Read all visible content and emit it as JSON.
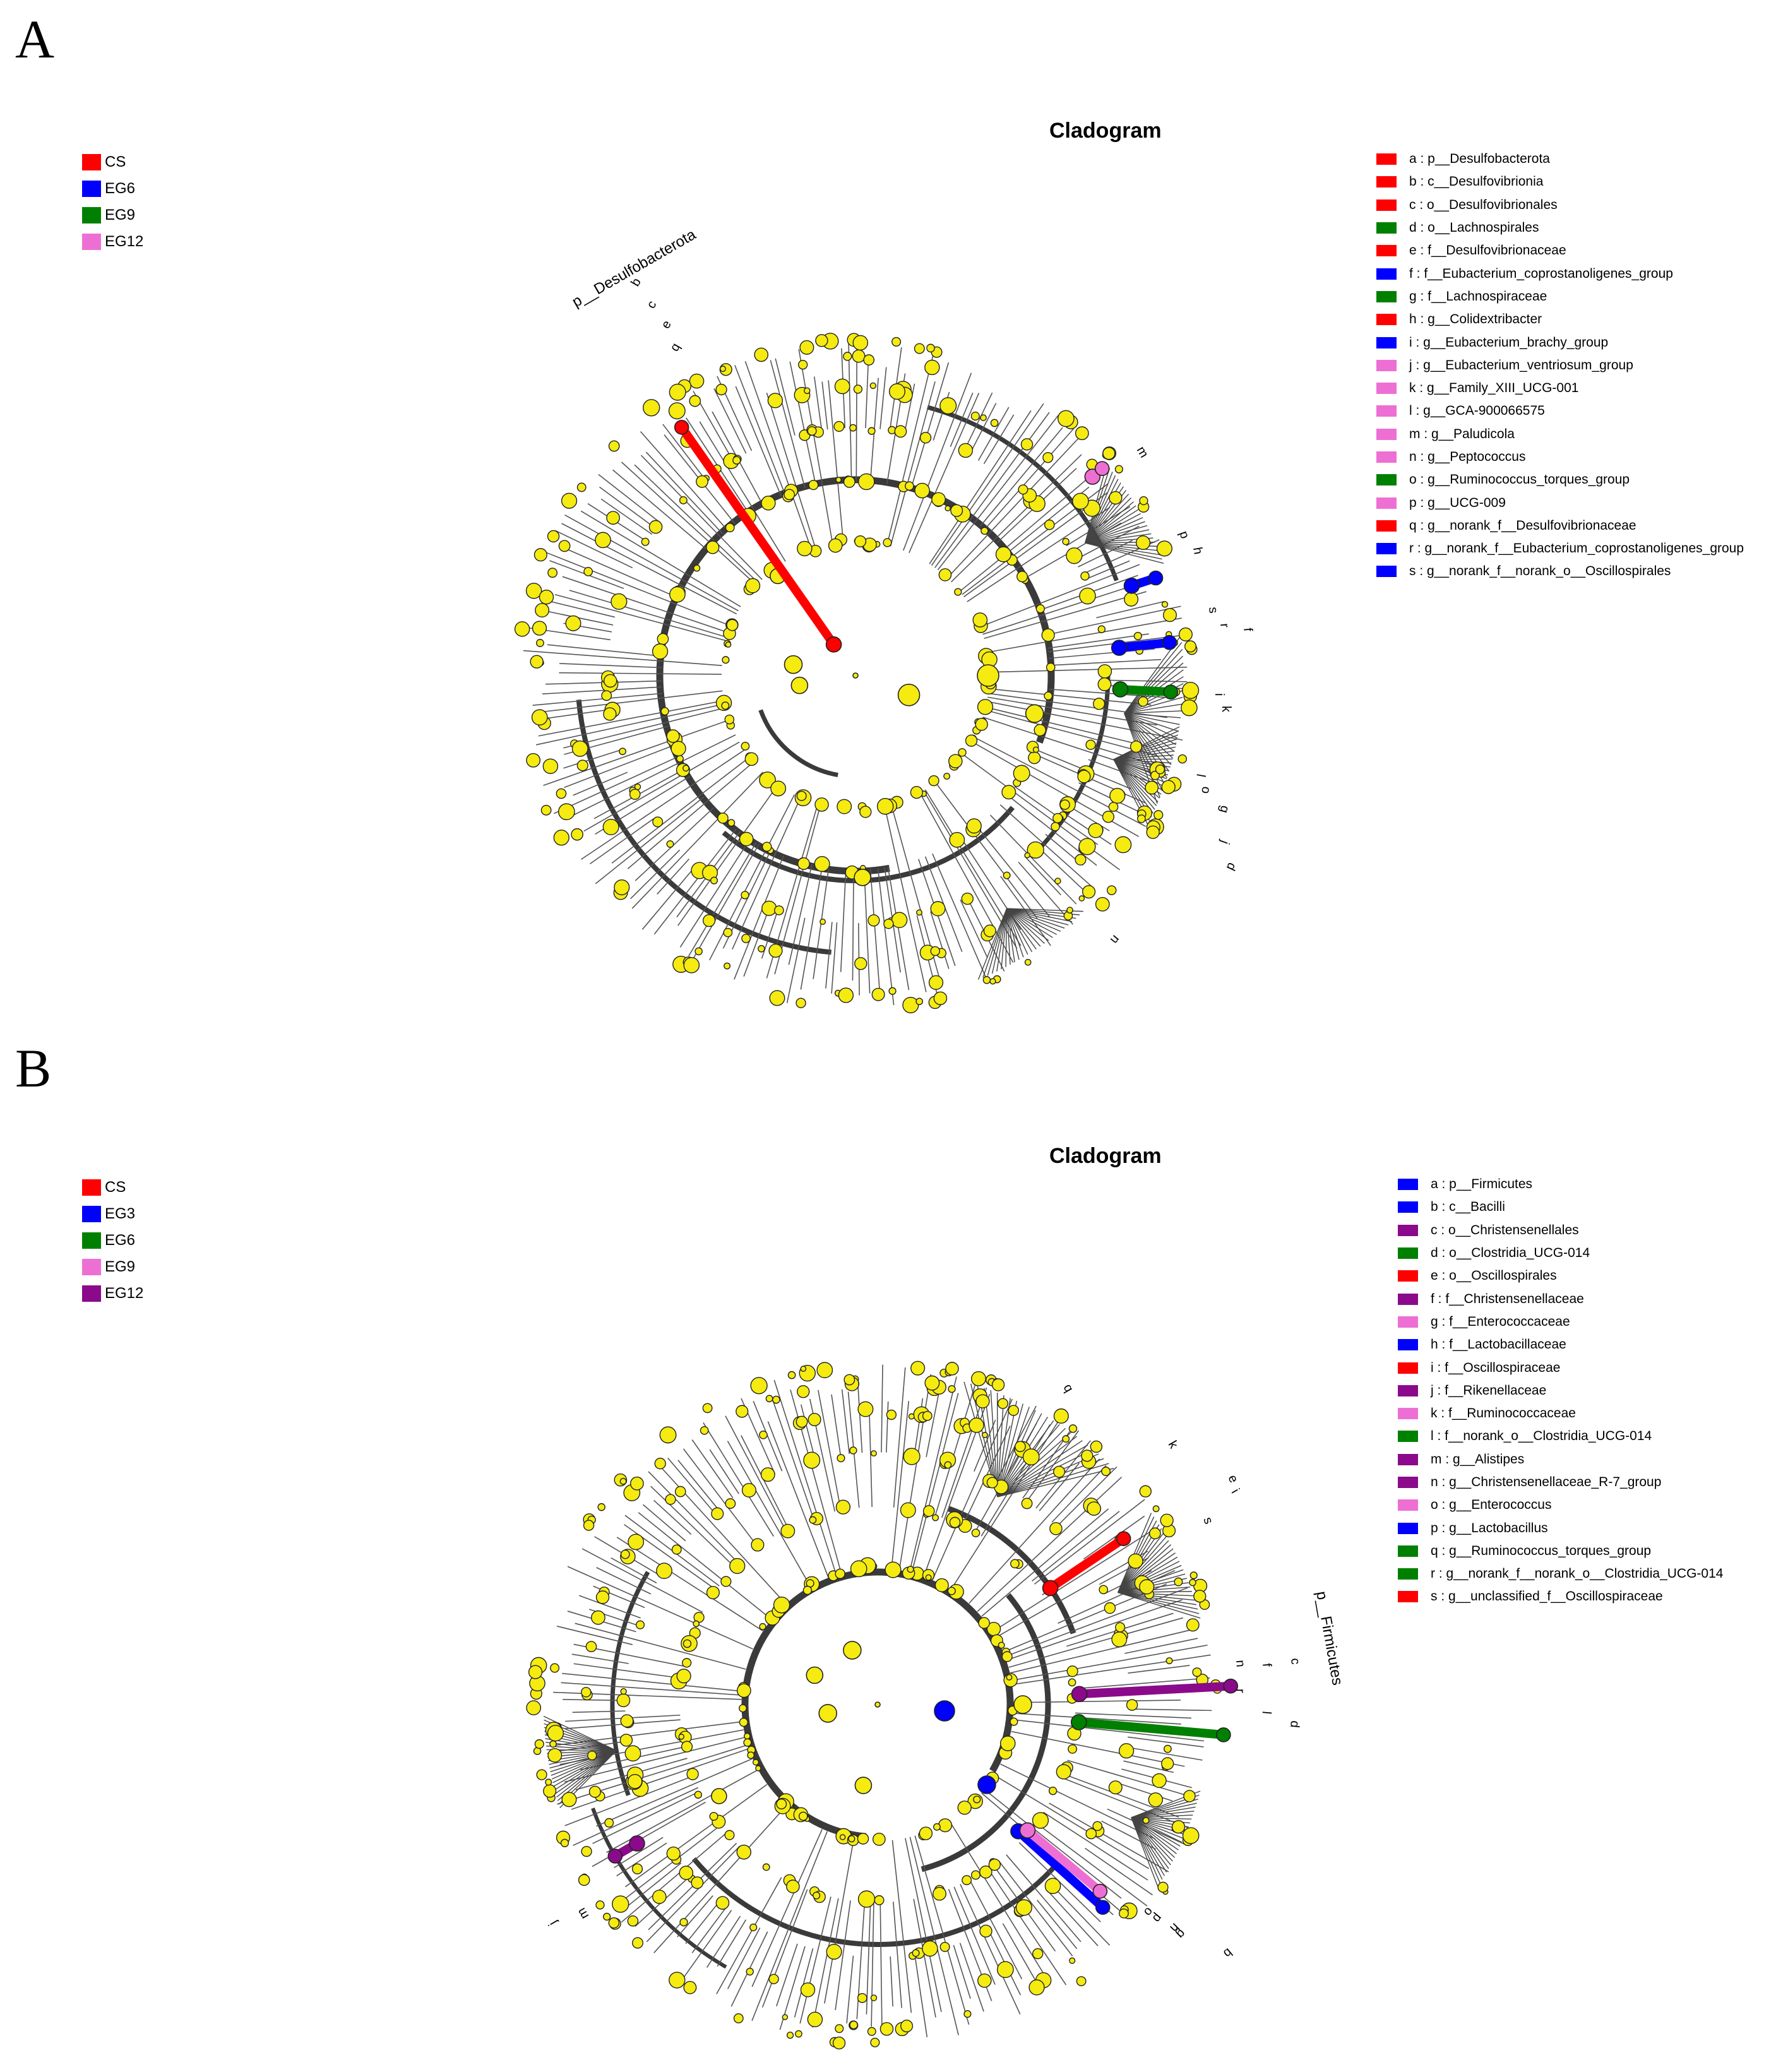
{
  "panels": [
    {
      "letter": "A",
      "title": "Cladogram",
      "groups": [
        {
          "label": "CS",
          "color": "#ff0000"
        },
        {
          "label": "EG6",
          "color": "#0000ff"
        },
        {
          "label": "EG9",
          "color": "#008000"
        },
        {
          "label": "EG12",
          "color": "#ee6fd4"
        }
      ],
      "taxa": [
        {
          "text": "a : p__Desulfobacterota",
          "color": "#ff0000"
        },
        {
          "text": "b : c__Desulfovibrionia",
          "color": "#ff0000"
        },
        {
          "text": "c : o__Desulfovibrionales",
          "color": "#ff0000"
        },
        {
          "text": "d : o__Lachnospirales",
          "color": "#008000"
        },
        {
          "text": "e : f__Desulfovibrionaceae",
          "color": "#ff0000"
        },
        {
          "text": "f : f__Eubacterium_coprostanoligenes_group",
          "color": "#0000ff"
        },
        {
          "text": "g : f__Lachnospiraceae",
          "color": "#008000"
        },
        {
          "text": "h : g__Colidextribacter",
          "color": "#ff0000"
        },
        {
          "text": "i : g__Eubacterium_brachy_group",
          "color": "#0000ff"
        },
        {
          "text": "j : g__Eubacterium_ventriosum_group",
          "color": "#ee6fd4"
        },
        {
          "text": "k : g__Family_XIII_UCG-001",
          "color": "#ee6fd4"
        },
        {
          "text": "l : g__GCA-900066575",
          "color": "#ee6fd4"
        },
        {
          "text": "m : g__Paludicola",
          "color": "#ee6fd4"
        },
        {
          "text": "n : g__Peptococcus",
          "color": "#ee6fd4"
        },
        {
          "text": "o : g__Ruminococcus_torques_group",
          "color": "#008000"
        },
        {
          "text": "p : g__UCG-009",
          "color": "#ee6fd4"
        },
        {
          "text": "q : g__norank_f__Desulfovibrionaceae",
          "color": "#ff0000"
        },
        {
          "text": "r : g__norank_f__Eubacterium_coprostanoligenes_group",
          "color": "#0000ff"
        },
        {
          "text": "s : g__norank_f__norank_o__Oscillospirales",
          "color": "#0000ff"
        }
      ],
      "phylum_label": "p__Desulfobacterota",
      "letters": [
        "b",
        "c",
        "e",
        "q",
        "m",
        "p",
        "h",
        "s",
        "r",
        "f",
        "i",
        "k",
        "l",
        "o",
        "g",
        "j",
        "d",
        "n"
      ]
    },
    {
      "letter": "B",
      "title": "Cladogram",
      "groups": [
        {
          "label": "CS",
          "color": "#ff0000"
        },
        {
          "label": "EG3",
          "color": "#0000ff"
        },
        {
          "label": "EG6",
          "color": "#008000"
        },
        {
          "label": "EG9",
          "color": "#ee6fd4"
        },
        {
          "label": "EG12",
          "color": "#8b0a8b"
        }
      ],
      "taxa": [
        {
          "text": "a : p__Firmicutes",
          "color": "#0000ff"
        },
        {
          "text": "b : c__Bacilli",
          "color": "#0000ff"
        },
        {
          "text": "c : o__Christensenellales",
          "color": "#8b0a8b"
        },
        {
          "text": "d : o__Clostridia_UCG-014",
          "color": "#008000"
        },
        {
          "text": "e : o__Oscillospirales",
          "color": "#ff0000"
        },
        {
          "text": "f : f__Christensenellaceae",
          "color": "#8b0a8b"
        },
        {
          "text": "g : f__Enterococcaceae",
          "color": "#ee6fd4"
        },
        {
          "text": "h : f__Lactobacillaceae",
          "color": "#0000ff"
        },
        {
          "text": "i : f__Oscillospiraceae",
          "color": "#ff0000"
        },
        {
          "text": "j : f__Rikenellaceae",
          "color": "#8b0a8b"
        },
        {
          "text": "k : f__Ruminococcaceae",
          "color": "#ee6fd4"
        },
        {
          "text": "l : f__norank_o__Clostridia_UCG-014",
          "color": "#008000"
        },
        {
          "text": "m : g__Alistipes",
          "color": "#8b0a8b"
        },
        {
          "text": "n : g__Christensenellaceae_R-7_group",
          "color": "#8b0a8b"
        },
        {
          "text": "o : g__Enterococcus",
          "color": "#ee6fd4"
        },
        {
          "text": "p : g__Lactobacillus",
          "color": "#0000ff"
        },
        {
          "text": "q : g__Ruminococcus_torques_group",
          "color": "#008000"
        },
        {
          "text": "r : g__norank_f__norank_o__Clostridia_UCG-014",
          "color": "#008000"
        },
        {
          "text": "s : g__unclassified_f__Oscillospiraceae",
          "color": "#ff0000"
        }
      ],
      "phylum_label": "p__Firmicutes",
      "letters": [
        "q",
        "k",
        "e",
        "i",
        "s",
        "n",
        "c",
        "f",
        "r",
        "l",
        "d",
        "j",
        "m",
        "o",
        "p",
        "g",
        "h",
        "b"
      ]
    }
  ],
  "colors": {
    "node_default": "#f5eb10",
    "node_stroke": "#222222",
    "branch": "#3a3a3a"
  }
}
